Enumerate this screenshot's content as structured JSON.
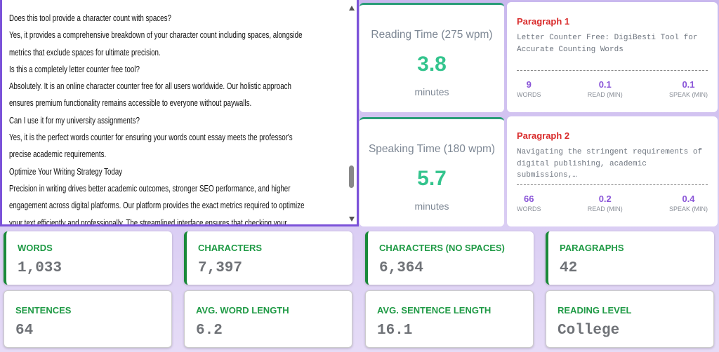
{
  "editor": {
    "lines": [
      "Does this tool provide a character count with spaces?",
      "Yes, it provides a comprehensive breakdown of your character count including spaces, alongside",
      "metrics that exclude spaces for ultimate precision.",
      "Is this a completely letter counter free tool?",
      "Absolutely. It is an online character counter free for all users worldwide. Our holistic approach",
      "ensures premium functionality remains accessible to everyone without paywalls.",
      "Can I use it for my university assignments?",
      "Yes, it is the perfect words counter for ensuring your words count essay meets the professor's",
      "precise academic requirements.",
      "Optimize Your Writing Strategy Today",
      "Precision in writing drives better academic outcomes, stronger SEO performance, and higher",
      "engagement across digital platforms. Our platform provides the exact metrics required to optimize",
      "your text efficiently and professionally. The streamlined interface ensures that checking your"
    ]
  },
  "time_cards": [
    {
      "title": "Reading Time (275 wpm)",
      "value": 3.8,
      "unit": "minutes"
    },
    {
      "title": "Speaking Time (180 wpm)",
      "value": 5.7,
      "unit": "minutes"
    }
  ],
  "paragraphs": [
    {
      "title": "Paragraph 1",
      "text": "Letter Counter Free: DigiBesti Tool for Accurate Counting Words",
      "stats": [
        {
          "value": 9,
          "label": "WORDS"
        },
        {
          "value": 0.1,
          "label": "READ (MIN)"
        },
        {
          "value": 0.1,
          "label": "SPEAK (MIN)"
        }
      ]
    },
    {
      "title": "Paragraph 2",
      "text": "Navigating the stringent requirements of digital publishing, academic submissions,…",
      "stats": [
        {
          "value": 66,
          "label": "WORDS"
        },
        {
          "value": 0.2,
          "label": "READ (MIN)"
        },
        {
          "value": 0.4,
          "label": "SPEAK (MIN)"
        }
      ]
    }
  ],
  "stats": [
    {
      "label": "WORDS",
      "value": "1,033"
    },
    {
      "label": "CHARACTERS",
      "value": "7,397"
    },
    {
      "label": "CHARACTERS (NO SPACES)",
      "value": "6,364"
    },
    {
      "label": "PARAGRAPHS",
      "value": 42
    },
    {
      "label": "SENTENCES",
      "value": 64
    },
    {
      "label": "AVG. WORD LENGTH",
      "value": 6.2
    },
    {
      "label": "AVG. SENTENCE LENGTH",
      "value": 16.1
    },
    {
      "label": "READING LEVEL",
      "value": "College"
    }
  ]
}
